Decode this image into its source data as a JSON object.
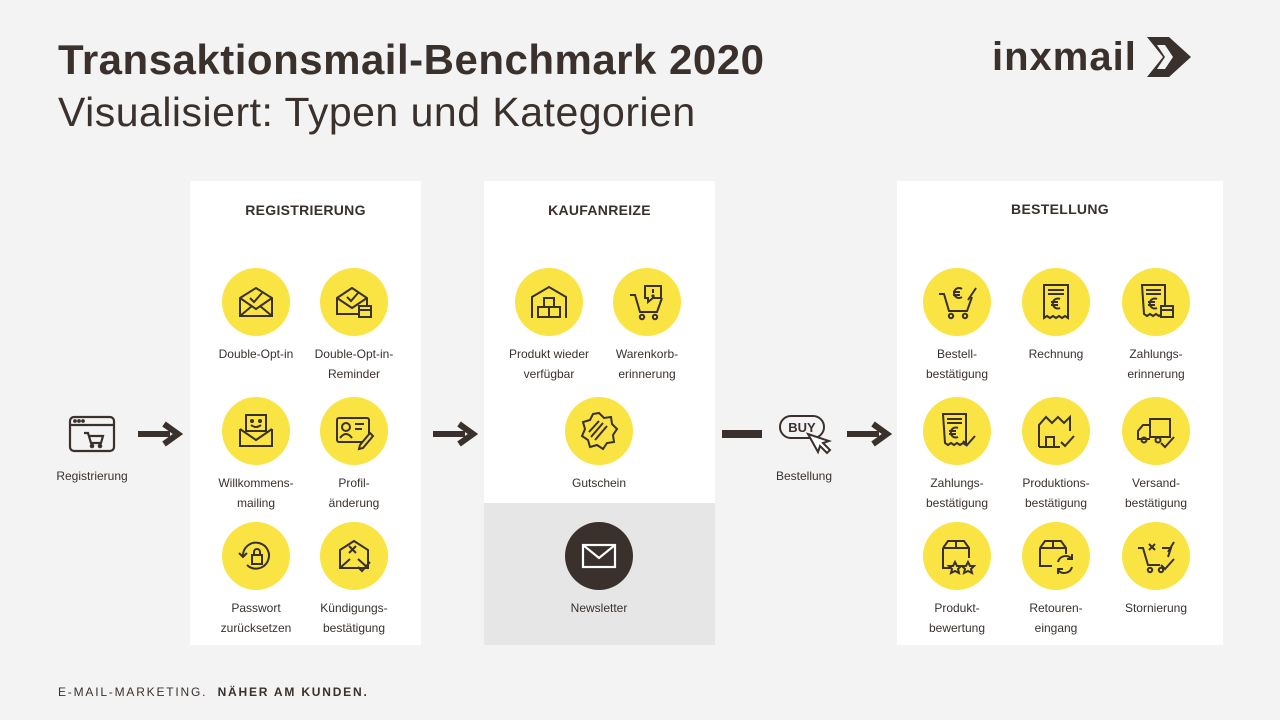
{
  "header": {
    "title": "Transaktionsmail-Benchmark 2020",
    "subtitle": "Visualisiert: Typen und Kategorien",
    "logo_text": "inxmail"
  },
  "start": {
    "label": "Registrierung",
    "icon": "browser-cart-icon"
  },
  "registrierung": {
    "title": "REGISTRIERUNG",
    "items": [
      {
        "label1": "Double-Opt-in",
        "label2": "",
        "icon": "envelope-check-icon"
      },
      {
        "label1": "Double-Opt-in-",
        "label2": "Reminder",
        "icon": "envelope-calendar-icon"
      },
      {
        "label1": "Willkommens-",
        "label2": "mailing",
        "icon": "envelope-smile-icon"
      },
      {
        "label1": "Profil-",
        "label2": "änderung",
        "icon": "profile-edit-icon"
      },
      {
        "label1": "Passwort",
        "label2": "zurücksetzen",
        "icon": "lock-reset-icon"
      },
      {
        "label1": "Kündigungs-",
        "label2": "bestätigung",
        "icon": "cancel-confirm-icon"
      }
    ]
  },
  "kaufanreize": {
    "title": "KAUFANREIZE",
    "items": [
      {
        "label1": "Produkt wieder",
        "label2": "verfügbar",
        "icon": "warehouse-icon"
      },
      {
        "label1": "Warenkorb-",
        "label2": "erinnerung",
        "icon": "cart-alert-icon"
      },
      {
        "label1": "Gutschein",
        "label2": "",
        "icon": "voucher-icon"
      }
    ],
    "newsletter": {
      "label": "Newsletter",
      "icon": "envelope-icon"
    }
  },
  "middle": {
    "label": "Bestellung",
    "icon": "buy-click-icon",
    "icon_text": "BUY"
  },
  "bestellung": {
    "title": "BESTELLUNG",
    "items": [
      {
        "label1": "Bestell-",
        "label2": "bestätigung",
        "icon": "cart-euro-icon"
      },
      {
        "label1": "Rechnung",
        "label2": "",
        "icon": "invoice-icon"
      },
      {
        "label1": "Zahlungs-",
        "label2": "erinnerung",
        "icon": "payment-reminder-icon"
      },
      {
        "label1": "Zahlungs-",
        "label2": "bestätigung",
        "icon": "payment-confirm-icon"
      },
      {
        "label1": "Produktions-",
        "label2": "bestätigung",
        "icon": "factory-check-icon"
      },
      {
        "label1": "Versand-",
        "label2": "bestätigung",
        "icon": "truck-check-icon"
      },
      {
        "label1": "Produkt-",
        "label2": "bewertung",
        "icon": "box-stars-icon"
      },
      {
        "label1": "Retouren-",
        "label2": "eingang",
        "icon": "box-return-icon"
      },
      {
        "label1": "Stornierung",
        "label2": "",
        "icon": "cart-cancel-icon"
      }
    ]
  },
  "footer": {
    "left": "E-MAIL-MARKETING.",
    "right": "NÄHER AM KUNDEN."
  },
  "colors": {
    "accent": "#f9e443",
    "dark": "#3a302c",
    "background": "#f3f3f3"
  }
}
